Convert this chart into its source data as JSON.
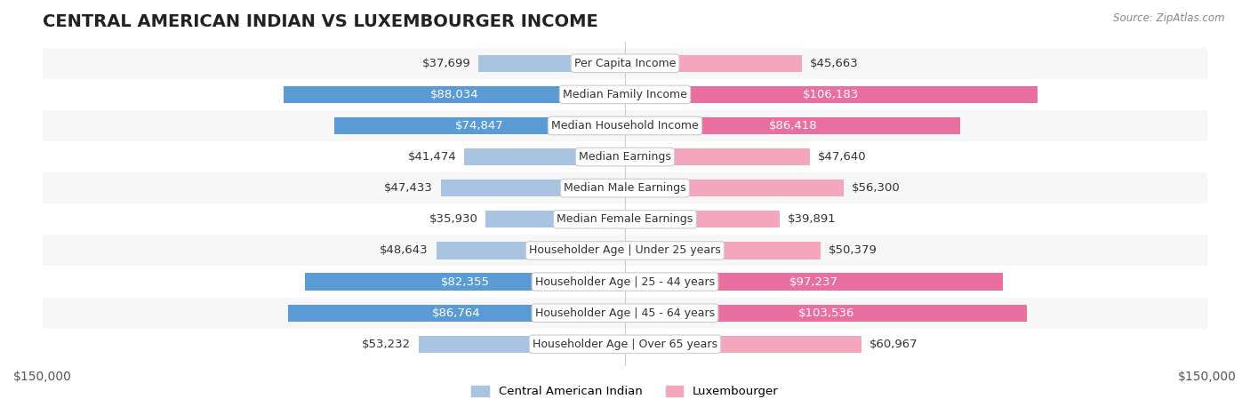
{
  "title": "CENTRAL AMERICAN INDIAN VS LUXEMBOURGER INCOME",
  "source": "Source: ZipAtlas.com",
  "categories": [
    "Per Capita Income",
    "Median Family Income",
    "Median Household Income",
    "Median Earnings",
    "Median Male Earnings",
    "Median Female Earnings",
    "Householder Age | Under 25 years",
    "Householder Age | 25 - 44 years",
    "Householder Age | 45 - 64 years",
    "Householder Age | Over 65 years"
  ],
  "central_american_indian": [
    37699,
    88034,
    74847,
    41474,
    47433,
    35930,
    48643,
    82355,
    86764,
    53232
  ],
  "luxembourger": [
    45663,
    106183,
    86418,
    47640,
    56300,
    39891,
    50379,
    97237,
    103536,
    60967
  ],
  "cai_labels": [
    "$37,699",
    "$88,034",
    "$74,847",
    "$41,474",
    "$47,433",
    "$35,930",
    "$48,643",
    "$82,355",
    "$86,764",
    "$53,232"
  ],
  "lux_labels": [
    "$45,663",
    "$106,183",
    "$86,418",
    "$47,640",
    "$56,300",
    "$39,891",
    "$50,379",
    "$97,237",
    "$103,536",
    "$60,967"
  ],
  "cai_color_light": "#a8c4e0",
  "cai_color_dark": "#5b9bd5",
  "lux_color_light": "#f4a7bc",
  "lux_color_dark": "#e96fa0",
  "bar_bg_color": "#f0f0f0",
  "row_bg_color": "#f7f7f7",
  "row_alt_bg_color": "#ffffff",
  "xlim": 150000,
  "bar_height": 0.55,
  "legend_label_cai": "Central American Indian",
  "legend_label_lux": "Luxembourger",
  "title_fontsize": 14,
  "label_fontsize": 9.5,
  "axis_label_fontsize": 10,
  "threshold_dark_label": 20000
}
